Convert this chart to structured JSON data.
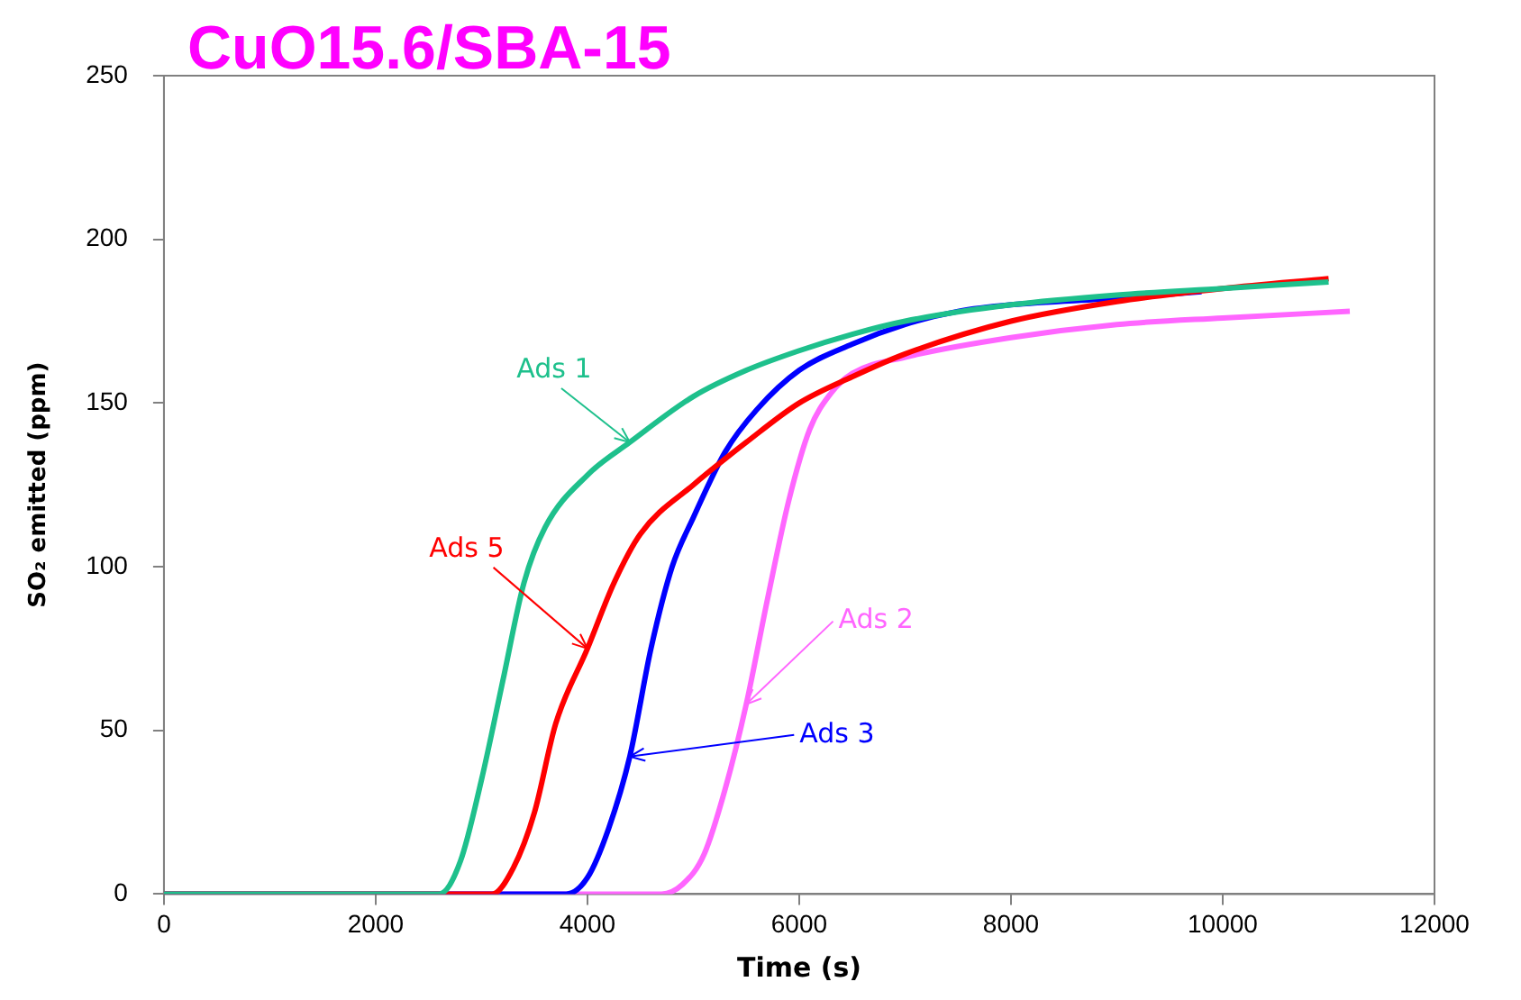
{
  "chart_data": {
    "type": "line",
    "title": "CuO15.6/SBA-15",
    "xlabel": "Time (s)",
    "ylabel": "SO₂ emitted (ppm)",
    "xlim": [
      0,
      12000
    ],
    "xticks": [
      0,
      2000,
      4000,
      6000,
      8000,
      10000,
      12000
    ],
    "ylim": [
      0,
      250
    ],
    "yticks": [
      0,
      50,
      100,
      150,
      200,
      250
    ],
    "grid": false,
    "legend": false,
    "marker": "none",
    "line_style": "solid",
    "series": [
      {
        "name": "Ads 1",
        "color": "#1ec08c",
        "x": [
          0,
          2600,
          2800,
          3000,
          3200,
          3400,
          3600,
          4000,
          4400,
          5000,
          5500,
          6000,
          6500,
          7000,
          8000,
          9000,
          10000,
          11000
        ],
        "values": [
          0,
          0,
          10,
          35,
          65,
          95,
          112,
          128,
          138,
          152,
          160,
          166,
          171,
          175,
          180,
          183,
          185,
          187
        ]
      },
      {
        "name": "Ads 5",
        "color": "#ff0000",
        "x": [
          0,
          3100,
          3300,
          3500,
          3700,
          4000,
          4250,
          4500,
          5000,
          5500,
          6000,
          6500,
          7000,
          8000,
          9000,
          10000,
          11000
        ],
        "values": [
          0,
          0,
          8,
          25,
          52,
          75,
          95,
          110,
          125,
          138,
          150,
          158,
          165,
          175,
          181,
          185,
          188
        ]
      },
      {
        "name": "Ads 3",
        "color": "#0000ff",
        "x": [
          0,
          3800,
          4000,
          4200,
          4400,
          4600,
          4800,
          5000,
          5300,
          5600,
          6000,
          6500,
          7000,
          7500,
          8000,
          9000,
          9800
        ],
        "values": [
          0,
          0,
          5,
          20,
          42,
          75,
          100,
          115,
          135,
          148,
          160,
          168,
          174,
          178,
          180,
          182,
          184
        ]
      },
      {
        "name": "Ads 2",
        "color": "#ff66ff",
        "x": [
          0,
          4700,
          4900,
          5100,
          5300,
          5500,
          5700,
          5900,
          6100,
          6300,
          6500,
          7000,
          8000,
          9000,
          10000,
          11200
        ],
        "values": [
          0,
          0,
          3,
          12,
          32,
          58,
          90,
          120,
          142,
          153,
          159,
          164,
          170,
          174,
          176,
          178
        ]
      }
    ]
  }
}
